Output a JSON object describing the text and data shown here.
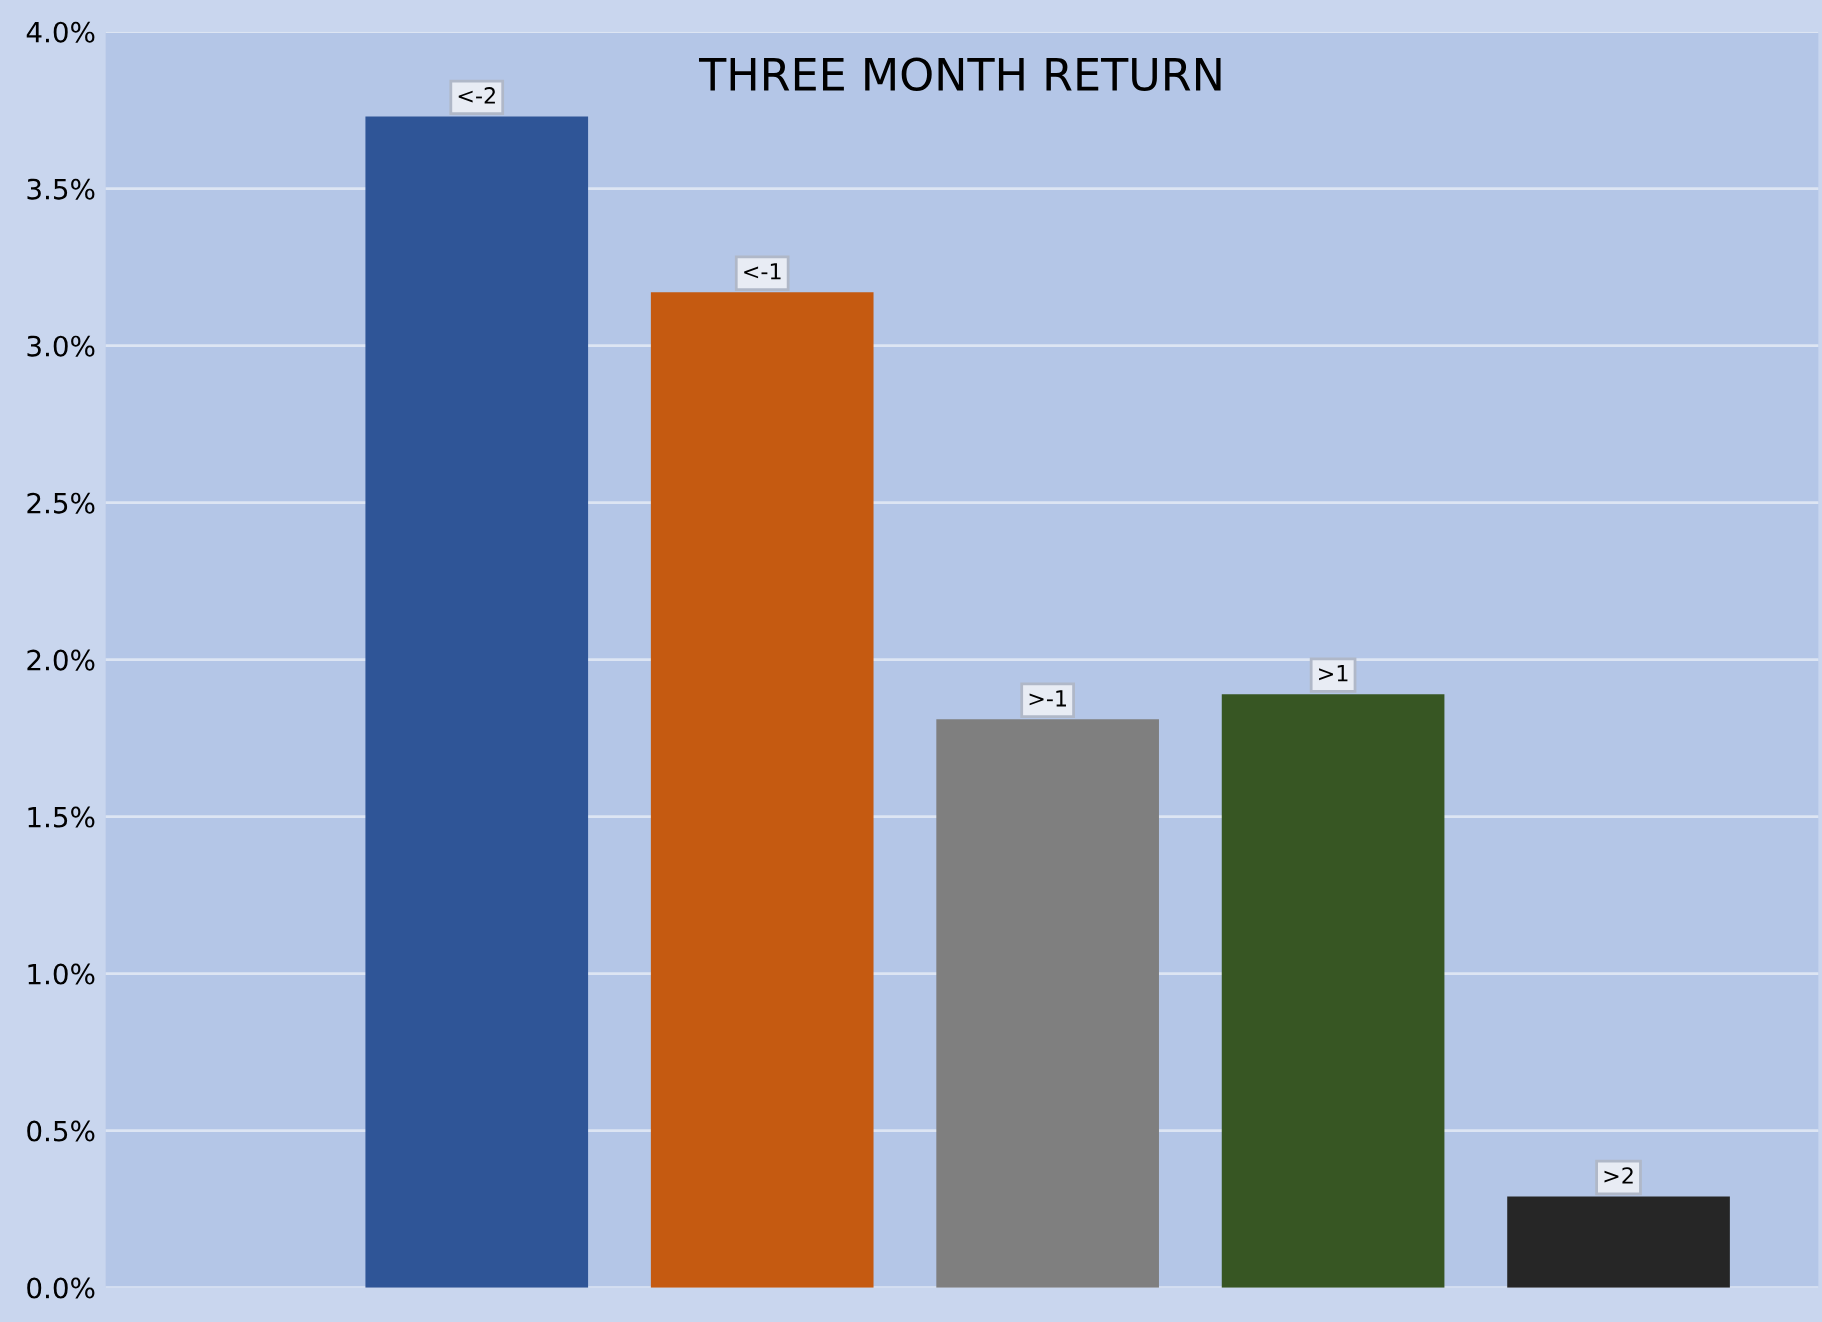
{
  "chart_data": {
    "type": "bar",
    "title": "THREE MONTH RETURN",
    "categories": [
      "<-2",
      "<-1",
      ">-1",
      ">1",
      ">2"
    ],
    "values": [
      3.73,
      3.17,
      1.81,
      1.89,
      0.29
    ],
    "colors": [
      "#2f5597",
      "#c55a11",
      "#7f7f7f",
      "#375623",
      "#262626"
    ],
    "ylim": [
      0,
      4.0
    ],
    "yticks": [
      {
        "value": 0,
        "label": "0.0%"
      },
      {
        "value": 0.5,
        "label": "0.5%"
      },
      {
        "value": 1.0,
        "label": "1.0%"
      },
      {
        "value": 1.5,
        "label": "1.5%"
      },
      {
        "value": 2.0,
        "label": "2.0%"
      },
      {
        "value": 2.5,
        "label": "2.5%"
      },
      {
        "value": 3.0,
        "label": "3.0%"
      },
      {
        "value": 3.5,
        "label": "3.5%"
      },
      {
        "value": 4.0,
        "label": "4.0%"
      }
    ],
    "grid": "y",
    "tick_labels": "y"
  }
}
